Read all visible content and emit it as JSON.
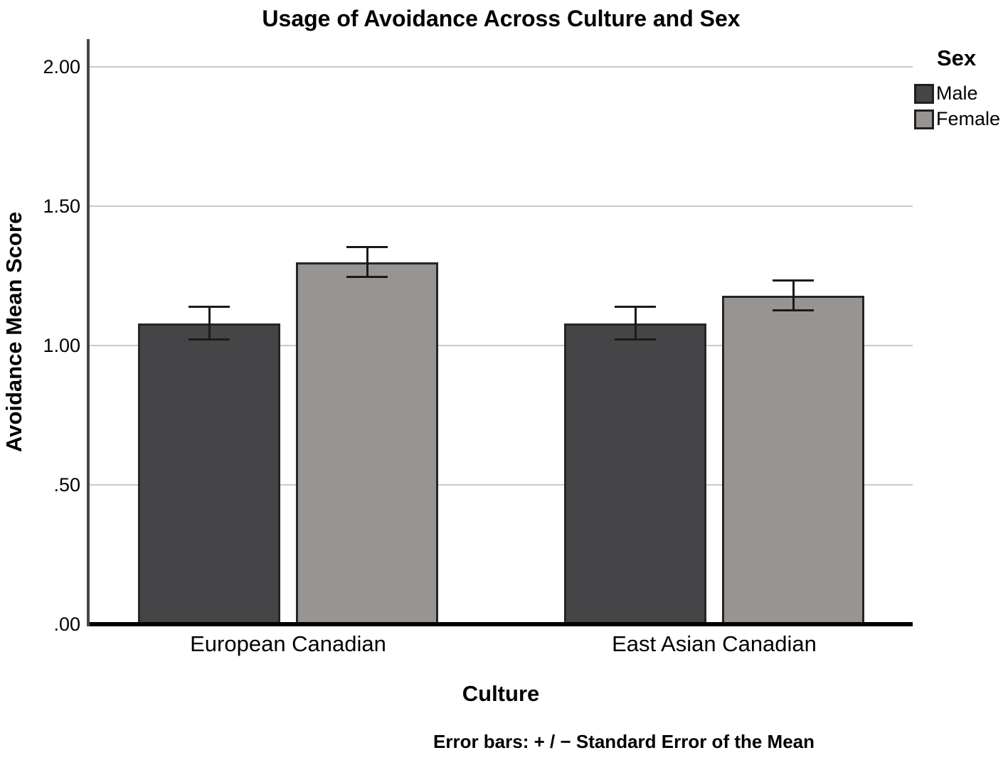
{
  "figure": {
    "title": "Usage of Avoidance Across Culture and Sex",
    "x_axis_title": "Culture",
    "y_axis_title": "Avoidance Mean Score",
    "legend_title": "Sex",
    "caption": "Error bars: + / − Standard Error of the Mean"
  },
  "chart_data": {
    "type": "bar",
    "title": "Usage of Avoidance Across Culture and Sex",
    "xlabel": "Culture",
    "ylabel": "Avoidance Mean Score",
    "categories": [
      "European Canadian",
      "East Asian Canadian"
    ],
    "series": [
      {
        "name": "Male",
        "values": [
          1.08,
          1.08
        ],
        "std_error": [
          0.06,
          0.06
        ],
        "color": "#454547"
      },
      {
        "name": "Female",
        "values": [
          1.3,
          1.18
        ],
        "std_error": [
          0.055,
          0.055
        ],
        "color": "#989492"
      }
    ],
    "ylim": [
      0,
      2.1
    ],
    "yticks": [
      {
        "label": "2.00",
        "value": 2.0
      },
      {
        "label": "1.50",
        "value": 1.5
      },
      {
        "label": "1.00",
        "value": 1.0
      },
      {
        "label": ".50",
        "value": 0.5
      },
      {
        "label": ".00",
        "value": 0.0
      }
    ],
    "grid": "horizontal",
    "legend_position": "top-right",
    "legend_title": "Sex",
    "error_note": "Error bars: + / − Standard Error of the Mean"
  },
  "colors": {
    "gridline": "#c9c9c9",
    "y_axis_line": "#454545",
    "x_axis_line": "#000000",
    "bar_border": "#262626",
    "error_bar": "#1a1a1a",
    "legend_swatch_border": "#1f1f1f",
    "text": "#000000",
    "background": "#ffffff"
  }
}
